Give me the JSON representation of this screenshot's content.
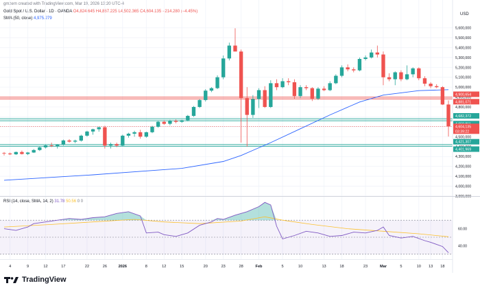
{
  "header": {
    "created_by": "gmzern created with TradingView.com, Mar 19, 2026 13:20 UTC-4",
    "symbol": "Gold Spot / U.S. Dollar · 1D · OANDA",
    "ohlc": {
      "o": "O4,824.645",
      "h": "H4,867.225",
      "l": "L4,502.365",
      "c": "C4,604.135",
      "change": "−214.280 (−4.45%)"
    },
    "sma_label": "SMA (50, close)",
    "sma_value": "4,975.279"
  },
  "currency": "USD",
  "colors": {
    "up": "#26a69a",
    "down": "#ef5350",
    "sma": "#2962ff",
    "rsi": "#7e57c2",
    "rsi_ma": "#fbc02d"
  },
  "chart_data": [
    {
      "type": "candlestick",
      "x_tick_labels": [
        "4",
        "9",
        "12",
        "17",
        "22",
        "26",
        "2026",
        "8",
        "12",
        "15",
        "20",
        "23",
        "28",
        "Feb",
        "5",
        "10",
        "13",
        "18",
        "23",
        "Mar",
        "5",
        "10",
        "13",
        "18"
      ],
      "ylim": [
        3900000,
        5700000
      ],
      "y_tick_labels": [
        "5,600,000",
        "5,500,000",
        "5,400,000",
        "5,300,000",
        "5,200,000",
        "5,100,000",
        "5,000,000",
        "4,900,000",
        "4,800,000",
        "4,700,000",
        "4,600,000",
        "4,500,000",
        "4,400,000",
        "4,300,000",
        "4,200,000",
        "4,100,000",
        "4,000,000",
        "3,900,000"
      ],
      "candles": [
        [
          4335,
          4345,
          4310,
          4330
        ],
        [
          4330,
          4340,
          4315,
          4322
        ],
        [
          4322,
          4350,
          4315,
          4345
        ],
        [
          4345,
          4360,
          4320,
          4325
        ],
        [
          4325,
          4345,
          4315,
          4340
        ],
        [
          4340,
          4375,
          4335,
          4365
        ],
        [
          4365,
          4400,
          4355,
          4392
        ],
        [
          4392,
          4420,
          4380,
          4412
        ],
        [
          4412,
          4440,
          4395,
          4405
        ],
        [
          4405,
          4425,
          4380,
          4420
        ],
        [
          4420,
          4470,
          4410,
          4462
        ],
        [
          4462,
          4475,
          4440,
          4450
        ],
        [
          4450,
          4470,
          4435,
          4460
        ],
        [
          4460,
          4520,
          4450,
          4510
        ],
        [
          4510,
          4560,
          4500,
          4552
        ],
        [
          4552,
          4580,
          4520,
          4575
        ],
        [
          4575,
          4600,
          4550,
          4595
        ],
        [
          4595,
          4610,
          4380,
          4410
        ],
        [
          4410,
          4440,
          4380,
          4425
        ],
        [
          4425,
          4440,
          4395,
          4410
        ],
        [
          4410,
          4520,
          4405,
          4510
        ],
        [
          4510,
          4540,
          4490,
          4530
        ],
        [
          4530,
          4560,
          4500,
          4545
        ],
        [
          4545,
          4570,
          4480,
          4500
        ],
        [
          4500,
          4550,
          4490,
          4545
        ],
        [
          4545,
          4610,
          4535,
          4600
        ],
        [
          4600,
          4660,
          4590,
          4650
        ],
        [
          4650,
          4665,
          4620,
          4630
        ],
        [
          4630,
          4670,
          4615,
          4660
        ],
        [
          4660,
          4675,
          4635,
          4650
        ],
        [
          4650,
          4670,
          4640,
          4665
        ],
        [
          4665,
          4720,
          4655,
          4710
        ],
        [
          4710,
          4810,
          4700,
          4800
        ],
        [
          4800,
          4880,
          4790,
          4870
        ],
        [
          4870,
          4980,
          4855,
          4965
        ],
        [
          4965,
          5000,
          4950,
          4990
        ],
        [
          4990,
          5120,
          4980,
          5100
        ],
        [
          5100,
          5320,
          5080,
          5290
        ],
        [
          5290,
          5450,
          5270,
          5420
        ],
        [
          5420,
          5595,
          5400,
          5360
        ],
        [
          5360,
          5380,
          4440,
          4890
        ],
        [
          4890,
          5000,
          4400,
          4720
        ],
        [
          4720,
          4920,
          4690,
          4880
        ],
        [
          4880,
          4990,
          4790,
          4970
        ],
        [
          4970,
          5010,
          4790,
          4800
        ],
        [
          4800,
          5070,
          4790,
          5040
        ],
        [
          5040,
          5080,
          4970,
          5000
        ],
        [
          5000,
          5090,
          4990,
          5060
        ],
        [
          5060,
          5090,
          5020,
          5050
        ],
        [
          5050,
          5080,
          4880,
          4910
        ],
        [
          4910,
          5020,
          4890,
          5000
        ],
        [
          5000,
          5020,
          4970,
          4990
        ],
        [
          4990,
          5000,
          4860,
          4885
        ],
        [
          4885,
          5000,
          4870,
          4985
        ],
        [
          4985,
          5010,
          4960,
          4970
        ],
        [
          4970,
          5060,
          4960,
          5040
        ],
        [
          5040,
          5130,
          5030,
          5115
        ],
        [
          5115,
          5220,
          5100,
          5200
        ],
        [
          5200,
          5230,
          5160,
          5180
        ],
        [
          5180,
          5200,
          5150,
          5170
        ],
        [
          5170,
          5300,
          5160,
          5285
        ],
        [
          5285,
          5320,
          5270,
          5300
        ],
        [
          5300,
          5380,
          5290,
          5350
        ],
        [
          5350,
          5420,
          5300,
          5330
        ],
        [
          5330,
          5360,
          5020,
          5100
        ],
        [
          5100,
          5140,
          5060,
          5080
        ],
        [
          5080,
          5160,
          5020,
          5150
        ],
        [
          5150,
          5170,
          5060,
          5080
        ],
        [
          5080,
          5220,
          5070,
          5130
        ],
        [
          5130,
          5200,
          5100,
          5190
        ],
        [
          5190,
          5200,
          5070,
          5090
        ],
        [
          5090,
          5110,
          5010,
          5035
        ],
        [
          5035,
          5050,
          4990,
          5010
        ],
        [
          5010,
          5030,
          4990,
          5000
        ],
        [
          5000,
          5010,
          4820,
          4825
        ],
        [
          4825,
          4867,
          4502,
          4604
        ]
      ],
      "sma": {
        "name": "SMA (50, close)",
        "points": [
          [
            0,
            4060
          ],
          [
            15,
            4115
          ],
          [
            30,
            4180
          ],
          [
            37,
            4250
          ],
          [
            40,
            4310
          ],
          [
            45,
            4440
          ],
          [
            50,
            4580
          ],
          [
            55,
            4720
          ],
          [
            60,
            4850
          ],
          [
            64,
            4920
          ],
          [
            70,
            4965
          ],
          [
            75,
            4975
          ]
        ]
      },
      "horizontal_zones": [
        {
          "kind": "resistance",
          "low": 4881.071,
          "high": 4900.654,
          "labels": [
            "4,900,654",
            "4,881,071"
          ]
        },
        {
          "kind": "support",
          "low": 4659.811,
          "high": 4682.372,
          "labels": [
            "4,682,372",
            "4,659,811"
          ]
        },
        {
          "kind": "support",
          "low": 4401.969,
          "high": 4421.307,
          "labels": [
            "4,421,307",
            "4,401,969"
          ]
        }
      ],
      "last_price": {
        "value": 4604.135,
        "label": "4,604,135",
        "countdown": "03:39:22"
      }
    },
    {
      "type": "line",
      "legend": [
        "RSI (14, close, SMA, 14, 2)",
        "31.78",
        "50.56",
        "0",
        "0"
      ],
      "y_tick_labels": [
        "60.00",
        "40.00"
      ],
      "rsi_levels": {
        "upper": 70,
        "middle": 50,
        "lower": 30
      },
      "ylim": [
        25,
        100
      ],
      "rsi": [
        [
          0,
          60
        ],
        [
          2,
          58
        ],
        [
          4,
          62
        ],
        [
          5,
          66
        ],
        [
          7,
          68
        ],
        [
          9,
          70
        ],
        [
          11,
          72
        ],
        [
          13,
          71
        ],
        [
          15,
          73
        ],
        [
          17,
          74
        ],
        [
          19,
          78
        ],
        [
          21,
          80
        ],
        [
          23,
          75
        ],
        [
          24,
          55
        ],
        [
          26,
          56
        ],
        [
          27,
          53
        ],
        [
          29,
          51
        ],
        [
          31,
          55
        ],
        [
          33,
          64
        ],
        [
          35,
          68
        ],
        [
          36,
          72
        ],
        [
          37,
          71
        ],
        [
          39,
          76
        ],
        [
          41,
          80
        ],
        [
          43,
          86
        ],
        [
          44,
          91
        ],
        [
          45,
          88
        ],
        [
          46,
          63
        ],
        [
          47,
          48
        ],
        [
          49,
          52
        ],
        [
          51,
          57
        ],
        [
          53,
          55
        ],
        [
          55,
          51
        ],
        [
          57,
          52
        ],
        [
          59,
          56
        ],
        [
          61,
          55
        ],
        [
          63,
          58
        ],
        [
          64,
          62
        ],
        [
          65,
          52
        ],
        [
          67,
          49
        ],
        [
          69,
          51
        ],
        [
          71,
          46
        ],
        [
          72,
          44
        ],
        [
          74,
          39
        ],
        [
          75,
          31.8
        ]
      ],
      "rsi_ma": [
        [
          0,
          62
        ],
        [
          8,
          65
        ],
        [
          15,
          68
        ],
        [
          22,
          71
        ],
        [
          27,
          68
        ],
        [
          33,
          66
        ],
        [
          40,
          69
        ],
        [
          44,
          74
        ],
        [
          47,
          70
        ],
        [
          52,
          65
        ],
        [
          58,
          60
        ],
        [
          64,
          57
        ],
        [
          70,
          54
        ],
        [
          75,
          50.6
        ]
      ]
    }
  ],
  "branding": {
    "name": "TradingView"
  }
}
